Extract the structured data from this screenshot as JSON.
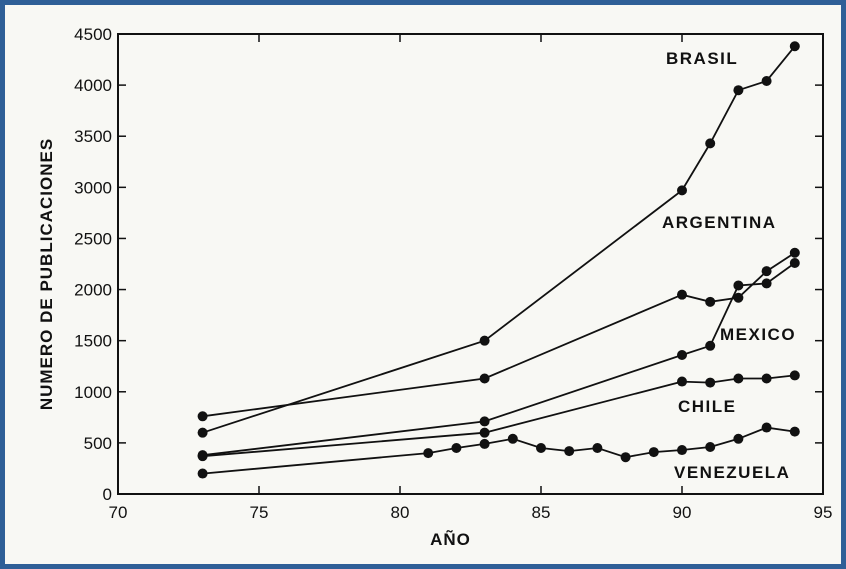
{
  "chart_data": {
    "type": "line",
    "title": "",
    "xlabel": "AÑO",
    "ylabel": "NUMERO DE PUBLICACIONES",
    "xlim": [
      70,
      95
    ],
    "ylim": [
      0,
      4500
    ],
    "xticks": [
      70,
      75,
      80,
      85,
      90,
      95
    ],
    "yticks": [
      0,
      500,
      1000,
      1500,
      2000,
      2500,
      3000,
      3500,
      4000,
      4500
    ],
    "grid": false,
    "legend": "none",
    "series": [
      {
        "name": "BRASIL",
        "x": [
          73,
          83,
          90,
          91,
          92,
          93,
          94
        ],
        "y": [
          600,
          1500,
          2970,
          3430,
          3950,
          4040,
          4380
        ]
      },
      {
        "name": "ARGENTINA",
        "x": [
          73,
          83,
          90,
          91,
          92,
          93,
          94
        ],
        "y": [
          760,
          1130,
          1950,
          1880,
          1920,
          2180,
          2360
        ]
      },
      {
        "name": "MEXICO",
        "x": [
          73,
          83,
          90,
          91,
          92,
          93,
          94
        ],
        "y": [
          380,
          710,
          1360,
          1450,
          2040,
          2060,
          2260
        ]
      },
      {
        "name": "CHILE",
        "x": [
          73,
          83,
          90,
          91,
          92,
          93,
          94
        ],
        "y": [
          370,
          600,
          1100,
          1090,
          1130,
          1130,
          1160
        ]
      },
      {
        "name": "VENEZUELA",
        "x": [
          73,
          81,
          82,
          83,
          84,
          85,
          86,
          87,
          88,
          89,
          90,
          91,
          92,
          93,
          94
        ],
        "y": [
          200,
          400,
          450,
          490,
          540,
          450,
          420,
          450,
          360,
          410,
          430,
          460,
          540,
          650,
          610
        ]
      }
    ]
  }
}
